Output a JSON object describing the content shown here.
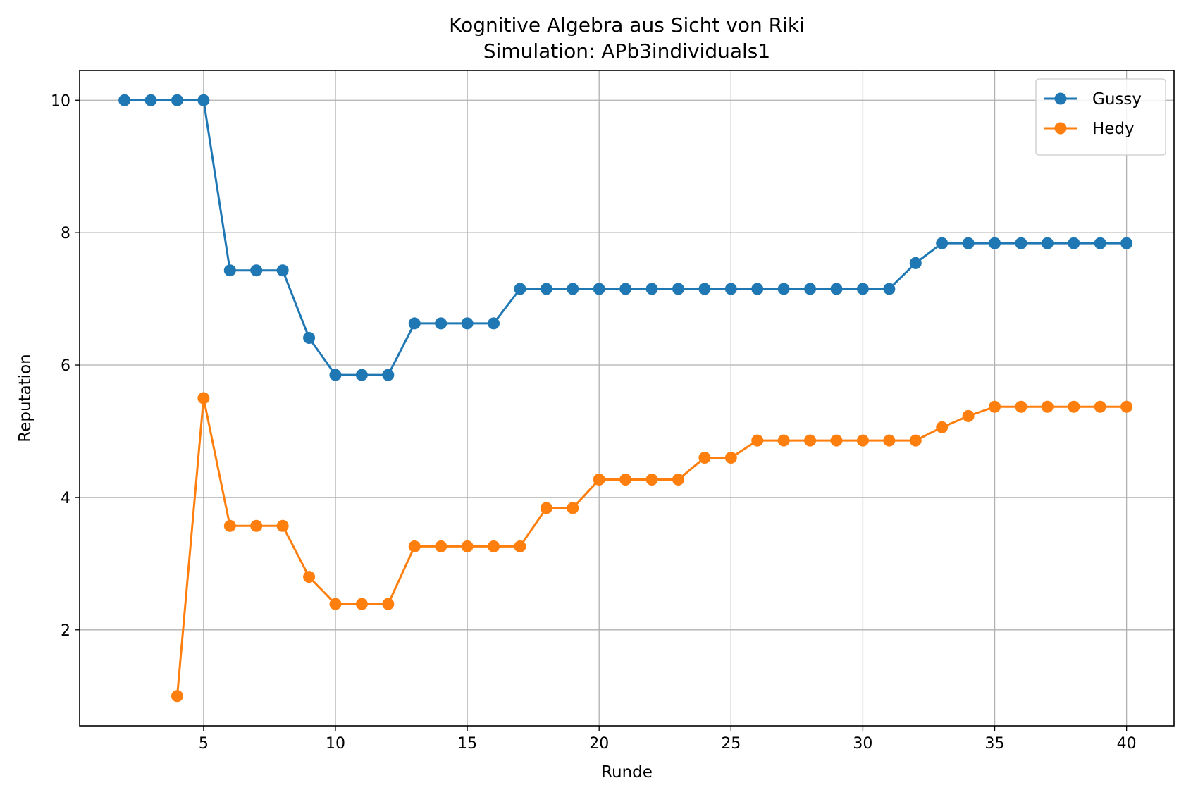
{
  "chart_data": {
    "type": "line",
    "title": "Kognitive Algebra aus Sicht von Riki",
    "subtitle": "Simulation: APb3individuals1",
    "xlabel": "Runde",
    "ylabel": "Reputation",
    "xlim": [
      0.3,
      41.8
    ],
    "ylim": [
      0.55,
      10.45
    ],
    "xticks": [
      5,
      10,
      15,
      20,
      25,
      30,
      35,
      40
    ],
    "yticks": [
      2,
      4,
      6,
      8,
      10
    ],
    "grid": true,
    "legend_position": "top-right",
    "series": [
      {
        "name": "Gussy",
        "color": "#1f77b4",
        "x": [
          2,
          3,
          4,
          5,
          6,
          7,
          8,
          9,
          10,
          11,
          12,
          13,
          14,
          15,
          16,
          17,
          18,
          19,
          20,
          21,
          22,
          23,
          24,
          25,
          26,
          27,
          28,
          29,
          30,
          31,
          32,
          33,
          34,
          35,
          36,
          37,
          38,
          39,
          40
        ],
        "values": [
          10,
          10,
          10,
          10,
          7.43,
          7.43,
          7.43,
          6.41,
          5.85,
          5.85,
          5.85,
          6.63,
          6.63,
          6.63,
          6.63,
          7.15,
          7.15,
          7.15,
          7.15,
          7.15,
          7.15,
          7.15,
          7.15,
          7.15,
          7.15,
          7.15,
          7.15,
          7.15,
          7.15,
          7.15,
          7.54,
          7.84,
          7.84,
          7.84,
          7.84,
          7.84,
          7.84,
          7.84,
          7.84
        ]
      },
      {
        "name": "Hedy",
        "color": "#ff7f0e",
        "x": [
          4,
          5,
          6,
          7,
          8,
          9,
          10,
          11,
          12,
          13,
          14,
          15,
          16,
          17,
          18,
          19,
          20,
          21,
          22,
          23,
          24,
          25,
          26,
          27,
          28,
          29,
          30,
          31,
          32,
          33,
          34,
          35,
          36,
          37,
          38,
          39,
          40
        ],
        "values": [
          1.0,
          5.5,
          3.57,
          3.57,
          3.57,
          2.8,
          2.39,
          2.39,
          2.39,
          3.26,
          3.26,
          3.26,
          3.26,
          3.26,
          3.84,
          3.84,
          4.27,
          4.27,
          4.27,
          4.27,
          4.6,
          4.6,
          4.86,
          4.86,
          4.86,
          4.86,
          4.86,
          4.86,
          4.86,
          5.06,
          5.23,
          5.37,
          5.37,
          5.37,
          5.37,
          5.37,
          5.37
        ]
      }
    ]
  }
}
